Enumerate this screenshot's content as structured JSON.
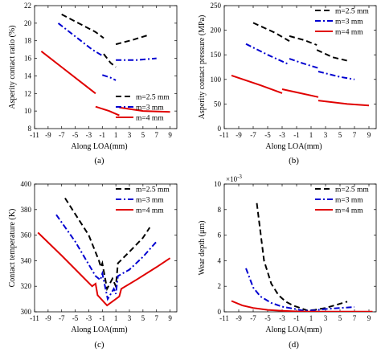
{
  "chart_data": [
    {
      "type": "line",
      "panel_label": "(a)",
      "xlabel": "Along LOA(mm)",
      "ylabel": "Asperity contact ratio (%)",
      "xlim": [
        -11,
        10
      ],
      "ylim": [
        8,
        22
      ],
      "xticks": [
        -11,
        -9,
        -7,
        -5,
        -3,
        -1,
        1,
        3,
        5,
        7,
        9
      ],
      "yticks": [
        8,
        10,
        12,
        14,
        16,
        18,
        20,
        22
      ],
      "legend_position": "bottom-right",
      "series": [
        {
          "name": "m=2.5 mm",
          "color": "#000000",
          "dash": "dashed",
          "segments": [
            [
              [
                -7.0,
                21.0
              ],
              [
                -4.5,
                20.0
              ],
              [
                -2.0,
                19.0
              ],
              [
                -0.8,
                18.3
              ]
            ],
            [
              [
                -0.8,
                16.5
              ],
              [
                0.2,
                15.5
              ],
              [
                1.0,
                15.0
              ]
            ],
            [
              [
                1.0,
                17.6
              ],
              [
                3.5,
                18.1
              ],
              [
                6.0,
                18.7
              ]
            ]
          ]
        },
        {
          "name": "m=3 mm",
          "color": "#0000d0",
          "dash": "dashdot",
          "segments": [
            [
              [
                -7.5,
                20.0
              ],
              [
                -5.0,
                18.5
              ],
              [
                -2.5,
                17.0
              ],
              [
                -1.0,
                16.3
              ]
            ],
            [
              [
                -1.0,
                14.1
              ],
              [
                0.2,
                13.8
              ],
              [
                1.0,
                13.5
              ]
            ],
            [
              [
                1.0,
                15.8
              ],
              [
                4.0,
                15.8
              ],
              [
                7.0,
                16.0
              ]
            ]
          ]
        },
        {
          "name": "m=4 mm",
          "color": "#e00000",
          "dash": "solid",
          "segments": [
            [
              [
                -10.0,
                16.8
              ],
              [
                -7.0,
                15.0
              ],
              [
                -4.0,
                13.2
              ],
              [
                -2.0,
                12.0
              ]
            ],
            [
              [
                -2.0,
                10.5
              ],
              [
                0.0,
                10.0
              ],
              [
                1.5,
                9.5
              ]
            ],
            [
              [
                1.5,
                10.4
              ],
              [
                5.0,
                10.0
              ],
              [
                9.0,
                9.9
              ]
            ]
          ]
        }
      ]
    },
    {
      "type": "line",
      "panel_label": "(b)",
      "xlabel": "Along LOA(mm)",
      "ylabel": "Asperity contact pressure (MPa)",
      "xlim": [
        -11,
        10
      ],
      "ylim": [
        0,
        250
      ],
      "xticks": [
        -11,
        -9,
        -7,
        -5,
        -3,
        -1,
        1,
        3,
        5,
        7,
        9
      ],
      "yticks": [
        0,
        50,
        100,
        150,
        200,
        250
      ],
      "legend_position": "top-right",
      "series": [
        {
          "name": "m=2.5 mm",
          "color": "#000000",
          "dash": "dashed",
          "segments": [
            [
              [
                -7.0,
                215
              ],
              [
                -4.0,
                195
              ],
              [
                -2.0,
                178
              ]
            ],
            [
              [
                -2.0,
                188
              ],
              [
                0.0,
                180
              ],
              [
                1.8,
                170
              ]
            ],
            [
              [
                1.8,
                160
              ],
              [
                4.0,
                145
              ],
              [
                6.0,
                138
              ]
            ]
          ]
        },
        {
          "name": "m=3 mm",
          "color": "#0000d0",
          "dash": "dashdot",
          "segments": [
            [
              [
                -8.0,
                172
              ],
              [
                -5.0,
                150
              ],
              [
                -2.0,
                130
              ]
            ],
            [
              [
                -2.0,
                142
              ],
              [
                0.0,
                132
              ],
              [
                2.0,
                123
              ]
            ],
            [
              [
                2.0,
                116
              ],
              [
                5.0,
                105
              ],
              [
                7.0,
                100
              ]
            ]
          ]
        },
        {
          "name": "m=4 mm",
          "color": "#e00000",
          "dash": "solid",
          "segments": [
            [
              [
                -10.0,
                108
              ],
              [
                -6.0,
                88
              ],
              [
                -3.0,
                72
              ]
            ],
            [
              [
                -3.0,
                80
              ],
              [
                -0.5,
                72
              ],
              [
                2.0,
                64
              ]
            ],
            [
              [
                2.0,
                57
              ],
              [
                6.0,
                50
              ],
              [
                9.0,
                47
              ]
            ]
          ]
        }
      ]
    },
    {
      "type": "line",
      "panel_label": "(c)",
      "xlabel": "Along LOA(mm)",
      "ylabel": "Contact temperature (K)",
      "xlim": [
        -11,
        10
      ],
      "ylim": [
        300,
        400
      ],
      "xticks": [
        -11,
        -9,
        -7,
        -5,
        -3,
        -1,
        1,
        3,
        5,
        7,
        9
      ],
      "yticks": [
        300,
        320,
        340,
        360,
        380,
        400
      ],
      "legend_position": "top-right",
      "series": [
        {
          "name": "m=2.5 mm",
          "color": "#000000",
          "dash": "dashed",
          "segments": [
            [
              [
                -6.5,
                389
              ],
              [
                -3.0,
                360
              ],
              [
                -1.5,
                340
              ],
              [
                -1.2,
                335
              ],
              [
                -1.0,
                338
              ],
              [
                -0.3,
                318
              ],
              [
                0.5,
                326
              ],
              [
                1.0,
                320
              ],
              [
                1.3,
                338
              ],
              [
                3.0,
                347
              ],
              [
                5.0,
                358
              ],
              [
                6.0,
                366
              ]
            ]
          ]
        },
        {
          "name": "m=3 mm",
          "color": "#0000d0",
          "dash": "dashdot",
          "segments": [
            [
              [
                -7.8,
                376
              ],
              [
                -5.0,
                355
              ],
              [
                -2.0,
                328
              ],
              [
                -1.3,
                325
              ],
              [
                -1.0,
                330
              ],
              [
                -0.2,
                310
              ],
              [
                0.7,
                318
              ],
              [
                1.0,
                314
              ],
              [
                1.3,
                328
              ],
              [
                3.0,
                333
              ],
              [
                5.0,
                343
              ],
              [
                7.0,
                355
              ]
            ]
          ]
        },
        {
          "name": "m=4 mm",
          "color": "#e00000",
          "dash": "solid",
          "segments": [
            [
              [
                -10.5,
                362
              ],
              [
                -7.0,
                344
              ],
              [
                -4.0,
                328
              ],
              [
                -2.5,
                320
              ],
              [
                -2.0,
                322
              ],
              [
                -1.7,
                313
              ],
              [
                -0.3,
                305
              ],
              [
                1.5,
                312
              ],
              [
                1.8,
                318
              ],
              [
                4.0,
                325
              ],
              [
                7.0,
                335
              ],
              [
                9.0,
                342
              ]
            ]
          ]
        }
      ]
    },
    {
      "type": "line",
      "panel_label": "(d)",
      "xlabel": "Along LOA(mm)",
      "ylabel": "Wear depth (μm)",
      "exponent_label": "×10",
      "exponent_power": "-3",
      "xlim": [
        -11,
        10
      ],
      "ylim": [
        0,
        10
      ],
      "xticks": [
        -11,
        -9,
        -7,
        -5,
        -3,
        -1,
        1,
        3,
        5,
        7,
        9
      ],
      "yticks": [
        0,
        2,
        4,
        6,
        8,
        10
      ],
      "legend_position": "top-right",
      "series": [
        {
          "name": "m=2.5 mm",
          "color": "#000000",
          "dash": "dashed",
          "segments": [
            [
              [
                -6.5,
                8.5
              ],
              [
                -5.5,
                4.0
              ],
              [
                -4.5,
                2.2
              ],
              [
                -3.5,
                1.3
              ],
              [
                -2.5,
                0.8
              ],
              [
                -1.5,
                0.5
              ],
              [
                -0.5,
                0.3
              ],
              [
                0.5,
                0.1
              ],
              [
                1.5,
                0.15
              ],
              [
                3.0,
                0.3
              ],
              [
                4.5,
                0.55
              ],
              [
                6.0,
                0.8
              ]
            ]
          ]
        },
        {
          "name": "m=3 mm",
          "color": "#0000d0",
          "dash": "dashdot",
          "segments": [
            [
              [
                -8.0,
                3.4
              ],
              [
                -7.0,
                1.9
              ],
              [
                -6.0,
                1.2
              ],
              [
                -4.5,
                0.7
              ],
              [
                -3.0,
                0.4
              ],
              [
                -1.5,
                0.25
              ],
              [
                0.0,
                0.08
              ],
              [
                1.5,
                0.12
              ],
              [
                3.0,
                0.22
              ],
              [
                5.0,
                0.3
              ],
              [
                7.0,
                0.38
              ]
            ]
          ]
        },
        {
          "name": "m=4 mm",
          "color": "#e00000",
          "dash": "solid",
          "segments": [
            [
              [
                -10.0,
                0.85
              ],
              [
                -8.5,
                0.5
              ],
              [
                -7.0,
                0.3
              ],
              [
                -5.0,
                0.15
              ],
              [
                -3.0,
                0.08
              ],
              [
                -1.0,
                0.03
              ],
              [
                1.0,
                0.01
              ],
              [
                4.0,
                0.01
              ],
              [
                7.0,
                0.01
              ],
              [
                9.5,
                0.01
              ]
            ]
          ]
        }
      ]
    }
  ]
}
